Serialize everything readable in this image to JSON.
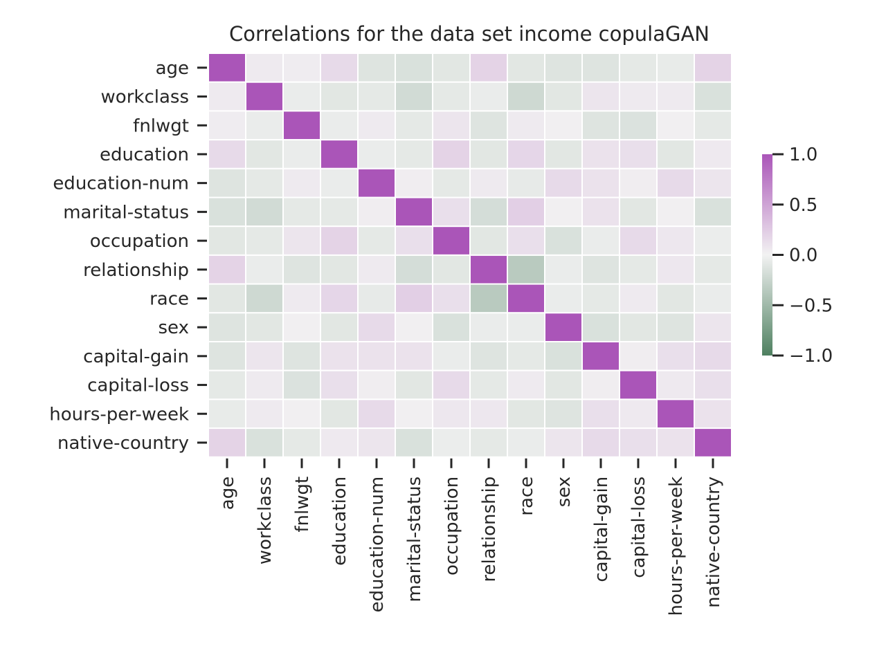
{
  "chart_data": {
    "type": "heatmap",
    "title": "Correlations for the data set income copulaGAN",
    "rows": [
      "age",
      "workclass",
      "fnlwgt",
      "education",
      "education-num",
      "marital-status",
      "occupation",
      "relationship",
      "race",
      "sex",
      "capital-gain",
      "capital-loss",
      "hours-per-week",
      "native-country"
    ],
    "columns": [
      "age",
      "workclass",
      "fnlwgt",
      "education",
      "education-num",
      "marital-status",
      "occupation",
      "relationship",
      "race",
      "sex",
      "capital-gain",
      "capital-loss",
      "hours-per-week",
      "native-country"
    ],
    "values": [
      [
        1.0,
        0.05,
        0.04,
        0.15,
        -0.12,
        -0.15,
        -0.1,
        0.2,
        -0.1,
        -0.12,
        -0.12,
        -0.08,
        -0.06,
        0.2
      ],
      [
        0.05,
        1.0,
        -0.05,
        -0.1,
        -0.08,
        -0.2,
        -0.08,
        -0.05,
        -0.22,
        -0.1,
        0.08,
        0.05,
        0.05,
        -0.15
      ],
      [
        0.04,
        -0.05,
        1.0,
        -0.05,
        0.05,
        -0.08,
        0.08,
        -0.12,
        0.05,
        0.02,
        -0.12,
        -0.14,
        0.02,
        -0.08
      ],
      [
        0.15,
        -0.1,
        -0.05,
        1.0,
        -0.05,
        -0.08,
        0.2,
        -0.1,
        0.18,
        -0.1,
        0.1,
        0.12,
        -0.1,
        0.06
      ],
      [
        -0.12,
        -0.08,
        0.05,
        -0.05,
        1.0,
        0.03,
        -0.08,
        0.05,
        -0.07,
        0.15,
        0.1,
        0.03,
        0.15,
        0.08
      ],
      [
        -0.15,
        -0.2,
        -0.08,
        -0.08,
        0.03,
        1.0,
        0.12,
        -0.18,
        0.22,
        0.02,
        0.1,
        -0.1,
        0.02,
        -0.15
      ],
      [
        -0.1,
        -0.08,
        0.08,
        0.2,
        -0.08,
        0.12,
        1.0,
        -0.1,
        0.12,
        -0.15,
        -0.05,
        0.15,
        0.07,
        -0.04
      ],
      [
        0.2,
        -0.05,
        -0.12,
        -0.1,
        0.05,
        -0.18,
        -0.1,
        1.0,
        -0.35,
        -0.05,
        -0.12,
        -0.08,
        0.07,
        -0.08
      ],
      [
        -0.1,
        -0.22,
        0.05,
        0.18,
        -0.07,
        0.22,
        0.12,
        -0.35,
        1.0,
        -0.05,
        -0.08,
        0.05,
        -0.1,
        -0.05
      ],
      [
        -0.12,
        -0.1,
        0.02,
        -0.1,
        0.15,
        0.02,
        -0.15,
        -0.05,
        -0.05,
        1.0,
        -0.15,
        -0.1,
        -0.12,
        0.08
      ],
      [
        -0.12,
        0.08,
        -0.12,
        0.1,
        0.1,
        0.1,
        -0.05,
        -0.12,
        -0.08,
        -0.15,
        1.0,
        0.03,
        0.12,
        0.15
      ],
      [
        -0.08,
        0.05,
        -0.14,
        0.12,
        0.03,
        -0.1,
        0.15,
        -0.08,
        0.05,
        -0.1,
        0.03,
        1.0,
        0.06,
        0.12
      ],
      [
        -0.06,
        0.05,
        0.02,
        -0.1,
        0.15,
        0.02,
        0.07,
        0.07,
        -0.1,
        -0.12,
        0.12,
        0.06,
        1.0,
        0.1
      ],
      [
        0.2,
        -0.15,
        -0.08,
        0.06,
        0.08,
        -0.15,
        -0.04,
        -0.08,
        -0.05,
        0.08,
        0.15,
        0.12,
        0.1,
        1.0
      ]
    ],
    "colorbar": {
      "min": -1.0,
      "max": 1.0,
      "ticks": [
        1.0,
        0.5,
        0.0,
        -0.5,
        -1.0
      ],
      "tick_labels": [
        "1.0",
        "0.5",
        "0.0",
        "−0.5",
        "−1.0"
      ],
      "low_color": "#4e8060",
      "mid_color": "#f2f2f2",
      "high_color": "#aa55b8"
    }
  }
}
